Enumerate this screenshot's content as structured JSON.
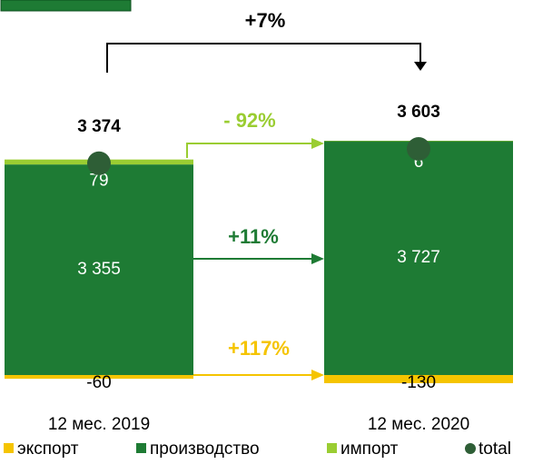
{
  "chart_data": {
    "type": "stacked-bar",
    "categories": [
      "12 мес. 2019",
      "12 мес. 2020"
    ],
    "series": [
      {
        "name": "экспорт",
        "color": "#f5c400",
        "values": [
          -60,
          -130
        ]
      },
      {
        "name": "производство",
        "color": "#1e7b34",
        "values": [
          3355,
          3727
        ],
        "value_labels": [
          "3 355",
          "3 727"
        ]
      },
      {
        "name": "импорт",
        "color": "#9acd32",
        "values": [
          79,
          6
        ]
      },
      {
        "name": "total",
        "color": "#2e5e36",
        "type": "dot",
        "values": [
          3374,
          3603
        ],
        "value_labels": [
          "3 374",
          "3 603"
        ]
      }
    ],
    "annotations": [
      {
        "text": "+7%",
        "color": "#000000"
      },
      {
        "text": "- 92%",
        "color": "#9acd32"
      },
      {
        "text": "+11%",
        "color": "#1e7b34"
      },
      {
        "text": "+117%",
        "color": "#f5c400"
      }
    ]
  }
}
